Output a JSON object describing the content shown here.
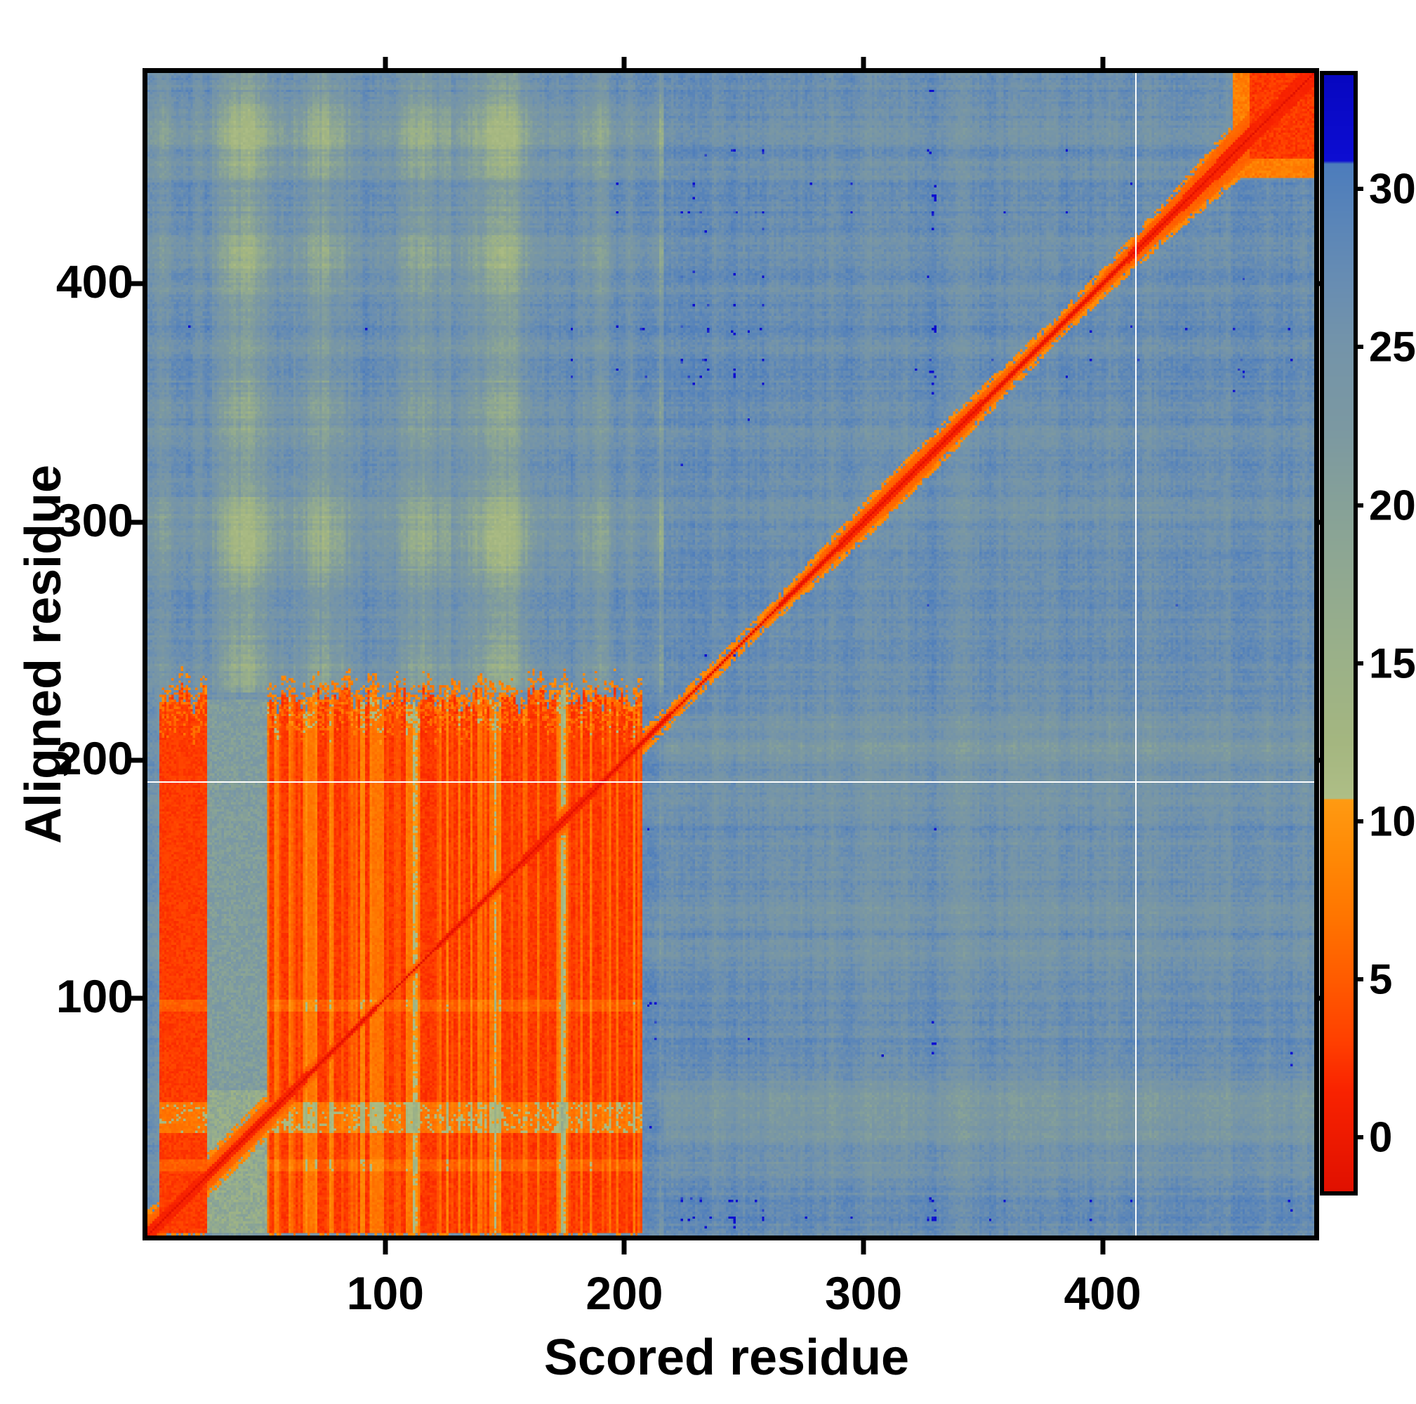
{
  "chart_data": {
    "type": "heatmap",
    "title": "",
    "xlabel": "Scored residue",
    "ylabel": "Aligned residue",
    "x_ticks": [
      100,
      200,
      300,
      400
    ],
    "y_ticks": [
      100,
      200,
      300,
      400
    ],
    "x_range": [
      0.5,
      488.5
    ],
    "y_range": [
      0.5,
      488.5
    ],
    "n_residues": 488,
    "grid": "off",
    "colorbar": {
      "orientation": "vertical-right",
      "ticks": [
        0,
        5,
        10,
        15,
        20,
        25,
        30
      ],
      "value_range": [
        -1.7,
        33.6
      ],
      "green_orange_boundary_value": 10.7,
      "blue_cap_above_value": 30.85,
      "color_stops": [
        [
          -1.7,
          "#e01000"
        ],
        [
          1.5,
          "#f92300"
        ],
        [
          3.0,
          "#ff3f00"
        ],
        [
          5.0,
          "#ff5b00"
        ],
        [
          7.0,
          "#ff7500"
        ],
        [
          9.0,
          "#ff8a06"
        ],
        [
          10.68,
          "#ff9a12"
        ],
        [
          10.72,
          "#aebe86"
        ],
        [
          12.5,
          "#a4b680"
        ],
        [
          15.0,
          "#9bb188"
        ],
        [
          17.5,
          "#91a990"
        ],
        [
          20.0,
          "#86a198"
        ],
        [
          22.5,
          "#7b98a2"
        ],
        [
          25.0,
          "#7494a9"
        ],
        [
          27.0,
          "#688db2"
        ],
        [
          29.0,
          "#5a85b8"
        ],
        [
          30.8,
          "#4c7cbc"
        ],
        [
          30.9,
          "#0d0dd2"
        ],
        [
          33.6,
          "#0707c0"
        ]
      ]
    },
    "features": {
      "background_mean_value": 26.8,
      "diagonal": {
        "from": [
          1,
          1
        ],
        "to": [
          488,
          488
        ],
        "core_value": -1.3,
        "halo_value": 4,
        "halo_halfwidth_residues": 4.5,
        "widens_near_ends": true
      },
      "alignment_block": {
        "scored": [
          51,
          207
        ],
        "aligned": [
          2,
          226
        ],
        "mean_value": 2.5
      },
      "left_red_stripe": {
        "scored": [
          6,
          25
        ],
        "aligned": [
          2,
          222
        ],
        "mean_value": 2.5
      },
      "gap_column": {
        "scored": [
          26,
          50
        ],
        "aligned": [
          2,
          225
        ],
        "mean_value": 19
      },
      "corner_red_block": {
        "scored": [
          462,
          488
        ],
        "aligned": [
          453,
          488
        ],
        "mean_value": 2.5
      },
      "pale_plaid_region": {
        "scored": [
          6,
          216
        ],
        "aligned": [
          228,
          488
        ],
        "min_value": 12
      },
      "pale_row_band_peaks_aligned": [
        50,
        105,
        150,
        205
      ],
      "block_light_column_slits_scored": [
        [
          66,
          71
        ],
        [
          95,
          99
        ],
        [
          110,
          114
        ],
        [
          144,
          148
        ],
        [
          172,
          176
        ]
      ],
      "block_light_row_bands_aligned": [
        [
          28,
          32
        ],
        [
          44,
          56
        ],
        [
          95,
          99
        ]
      ],
      "white_hline_aligned": 191,
      "white_vline_scored": 414,
      "blue_specks": [
        [
          308,
          76
        ]
      ]
    }
  }
}
